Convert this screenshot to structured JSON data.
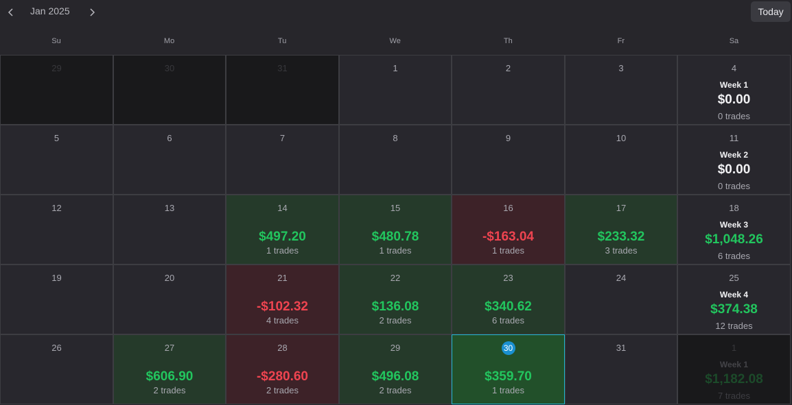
{
  "header": {
    "month": "Jan 2025",
    "today": "Today"
  },
  "weekdays": [
    "Su",
    "Mo",
    "Tu",
    "We",
    "Th",
    "Fr",
    "Sa"
  ],
  "weeks": [
    {
      "days": [
        {
          "day": "29",
          "outside": true
        },
        {
          "day": "30",
          "outside": true
        },
        {
          "day": "31",
          "outside": true
        },
        {
          "day": "1"
        },
        {
          "day": "2"
        },
        {
          "day": "3"
        },
        {
          "day": "4",
          "week": "Week 1",
          "pnl": "$0.00",
          "trades": "0 trades"
        }
      ]
    },
    {
      "days": [
        {
          "day": "5"
        },
        {
          "day": "6"
        },
        {
          "day": "7"
        },
        {
          "day": "8"
        },
        {
          "day": "9"
        },
        {
          "day": "10"
        },
        {
          "day": "11",
          "week": "Week 2",
          "pnl": "$0.00",
          "trades": "0 trades"
        }
      ]
    },
    {
      "days": [
        {
          "day": "12"
        },
        {
          "day": "13"
        },
        {
          "day": "14",
          "pnl": "$497.20",
          "trades": "1 trades"
        },
        {
          "day": "15",
          "pnl": "$480.78",
          "trades": "1 trades"
        },
        {
          "day": "16",
          "pnl": "-$163.04",
          "trades": "1 trades"
        },
        {
          "day": "17",
          "pnl": "$233.32",
          "trades": "3 trades"
        },
        {
          "day": "18",
          "week": "Week 3",
          "pnl": "$1,048.26",
          "trades": "6 trades"
        }
      ]
    },
    {
      "days": [
        {
          "day": "19"
        },
        {
          "day": "20"
        },
        {
          "day": "21",
          "pnl": "-$102.32",
          "trades": "4 trades"
        },
        {
          "day": "22",
          "pnl": "$136.08",
          "trades": "2 trades"
        },
        {
          "day": "23",
          "pnl": "$340.62",
          "trades": "6 trades"
        },
        {
          "day": "24"
        },
        {
          "day": "25",
          "week": "Week 4",
          "pnl": "$374.38",
          "trades": "12 trades"
        }
      ]
    },
    {
      "days": [
        {
          "day": "26"
        },
        {
          "day": "27",
          "pnl": "$606.90",
          "trades": "2 trades"
        },
        {
          "day": "28",
          "pnl": "-$280.60",
          "trades": "2 trades"
        },
        {
          "day": "29",
          "pnl": "$496.08",
          "trades": "2 trades"
        },
        {
          "day": "30",
          "pnl": "$359.70",
          "trades": "1 trades",
          "today": true
        },
        {
          "day": "31"
        },
        {
          "day": "1",
          "outside": true,
          "week": "Week 1",
          "pnl": "$1,182.08",
          "trades": "7 trades"
        }
      ]
    }
  ]
}
